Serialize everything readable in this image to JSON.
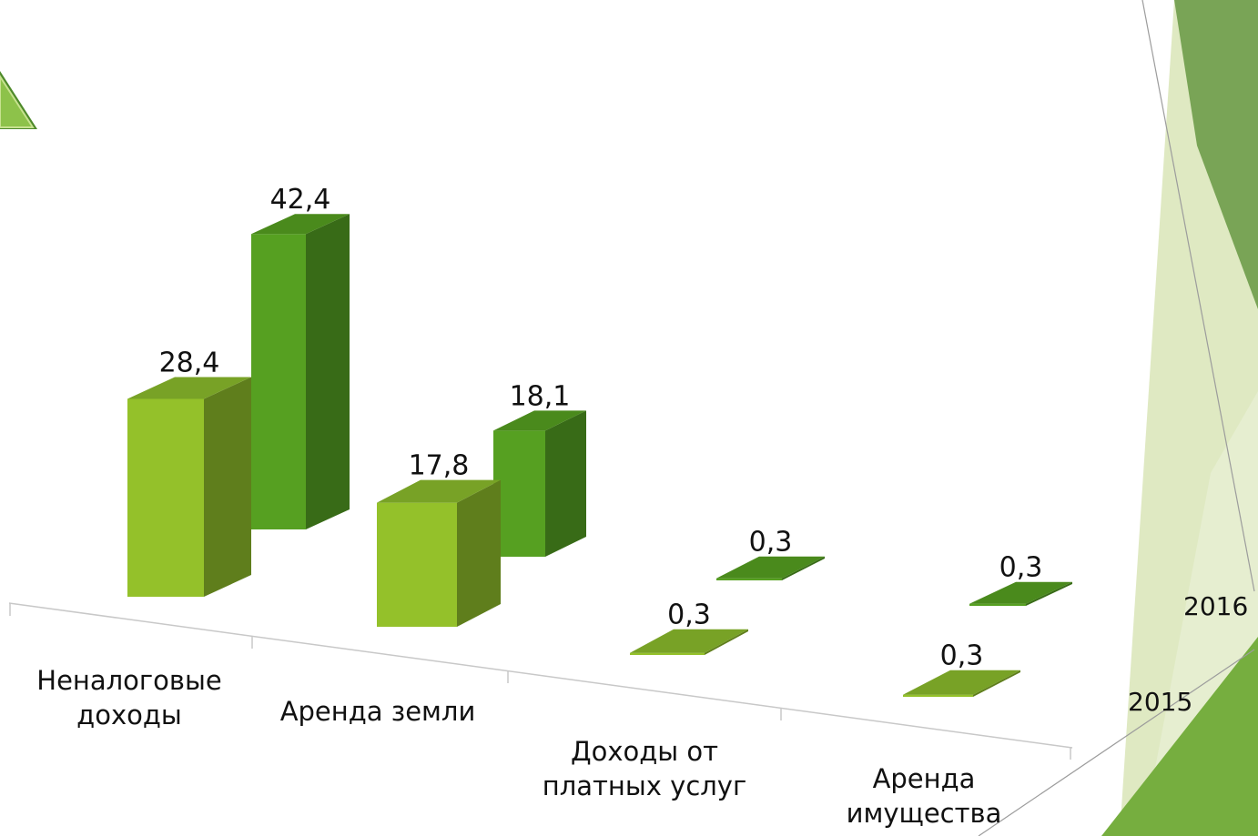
{
  "chart_data": {
    "type": "bar",
    "categories": [
      "Неналоговые доходы",
      "Аренда земли",
      "Доходы от платных услуг",
      "Аренда имущества"
    ],
    "category_lines": [
      [
        "Неналоговые",
        "доходы"
      ],
      [
        "Аренда земли"
      ],
      [
        "Доходы от",
        "платных услуг"
      ],
      [
        "Аренда",
        "имущества"
      ]
    ],
    "series": [
      {
        "name": "2015",
        "values": [
          28.4,
          17.8,
          0.3,
          0.3
        ],
        "labels": [
          "28,4",
          "17,8",
          "0,3",
          "0,3"
        ]
      },
      {
        "name": "2016",
        "values": [
          42.4,
          18.1,
          0.3,
          0.3
        ],
        "labels": [
          "42,4",
          "18,1",
          "0,3",
          "0,3"
        ]
      }
    ],
    "colors": {
      "2015": {
        "front": "#94c12a",
        "side": "#5f7e1c",
        "top": "#78a226"
      },
      "2016": {
        "front": "#56a021",
        "side": "#386b17",
        "top": "#4a8a1c"
      }
    }
  }
}
